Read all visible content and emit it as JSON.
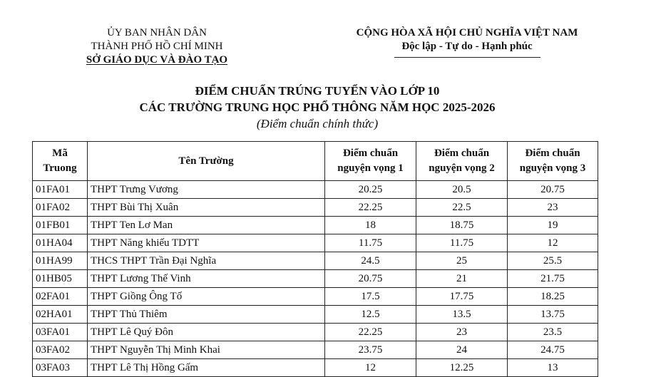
{
  "header": {
    "left": [
      "ỦY BAN NHÂN DÂN",
      "THÀNH PHỐ HỒ CHÍ MINH",
      "SỞ GIÁO DỤC VÀ ĐÀO TẠO"
    ],
    "right": [
      "CỘNG HÒA XÃ HỘI CHỦ NGHĨA VIỆT NAM",
      "Độc lập - Tự do - Hạnh phúc"
    ]
  },
  "title": [
    "ĐIỂM CHUẨN TRÚNG TUYỂN VÀO LỚP 10",
    "CÁC TRƯỜNG TRUNG HỌC PHỔ THÔNG NĂM HỌC 2025-2026",
    "(Điểm chuẩn chính thức)"
  ],
  "table": {
    "columns": [
      [
        "Mã",
        "Truong"
      ],
      [
        "Tên Trường"
      ],
      [
        "Điểm chuẩn",
        "nguyện vọng 1"
      ],
      [
        "Điểm chuẩn",
        "nguyện vọng 2"
      ],
      [
        "Điểm chuẩn",
        "nguyện vọng 3"
      ]
    ],
    "rows": [
      [
        "01FA01",
        "THPT Trưng Vương",
        "20.25",
        "20.5",
        "20.75"
      ],
      [
        "01FA02",
        "THPT Bùi Thị Xuân",
        "22.25",
        "22.5",
        "23"
      ],
      [
        "01FB01",
        "THPT Ten Lơ Man",
        "18",
        "18.75",
        "19"
      ],
      [
        "01HA04",
        "THPT Năng khiếu TDTT",
        "11.75",
        "11.75",
        "12"
      ],
      [
        "01HA99",
        "THCS THPT Trần Đại Nghĩa",
        "24.5",
        "25",
        "25.5"
      ],
      [
        "01HB05",
        "THPT Lương Thế Vinh",
        "20.75",
        "21",
        "21.75"
      ],
      [
        "02FA01",
        "THPT Giồng Ông Tố",
        "17.5",
        "17.75",
        "18.25"
      ],
      [
        "02HA01",
        "THPT Thủ Thiêm",
        "12.5",
        "13.5",
        "13.75"
      ],
      [
        "03FA01",
        "THPT Lê Quý Đôn",
        "22.25",
        "23",
        "23.5"
      ],
      [
        "03FA02",
        "THPT Nguyễn Thị Minh Khai",
        "23.75",
        "24",
        "24.75"
      ],
      [
        "03FA03",
        "THPT Lê Thị Hồng Gấm",
        "12",
        "12.25",
        "13"
      ]
    ]
  }
}
